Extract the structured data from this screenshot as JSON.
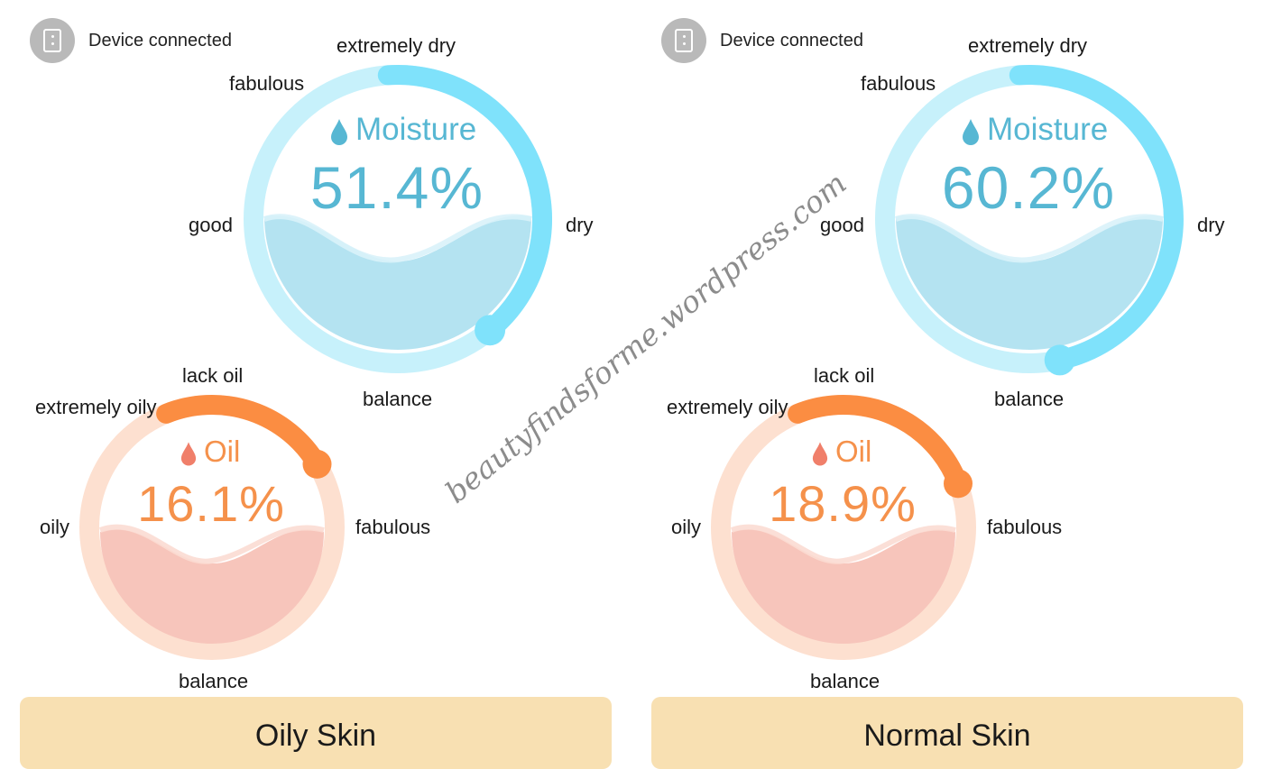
{
  "panels": [
    {
      "device_status": "Device connected",
      "moisture": {
        "title": "Moisture",
        "value": "51.4%",
        "level_percent": 51.4,
        "labels": {
          "top": "extremely dry",
          "upper_left": "fabulous",
          "left": "good",
          "right": "dry",
          "bottom": "balance"
        }
      },
      "oil": {
        "title": "Oil",
        "value": "16.1%",
        "level_percent": 16.1,
        "labels": {
          "top": "lack oil",
          "upper_left": "extremely oily",
          "left": "oily",
          "right": "fabulous",
          "bottom": "balance"
        }
      },
      "skin_type": "Oily Skin"
    },
    {
      "device_status": "Device connected",
      "moisture": {
        "title": "Moisture",
        "value": "60.2%",
        "level_percent": 60.2,
        "labels": {
          "top": "extremely dry",
          "upper_left": "fabulous",
          "left": "good",
          "right": "dry",
          "bottom": "balance"
        }
      },
      "oil": {
        "title": "Oil",
        "value": "18.9%",
        "level_percent": 18.9,
        "labels": {
          "top": "lack oil",
          "upper_left": "extremely oily",
          "left": "oily",
          "right": "fabulous",
          "bottom": "balance"
        }
      },
      "skin_type": "Normal Skin"
    }
  ],
  "watermark": "beautyfindsforme.wordpress.com",
  "icons": {
    "device": "phone-icon",
    "moisture": "water-drop-icon",
    "oil": "oil-drop-icon"
  },
  "colors": {
    "moisture_accent": "#57b7d3",
    "moisture_arc": "#7fe2fb",
    "moisture_track": "#c7f1fb",
    "oil_accent": "#f5914b",
    "oil_arc": "#fb8d42",
    "oil_track": "#fde0d0",
    "skin_card": "#f8e0b2"
  }
}
